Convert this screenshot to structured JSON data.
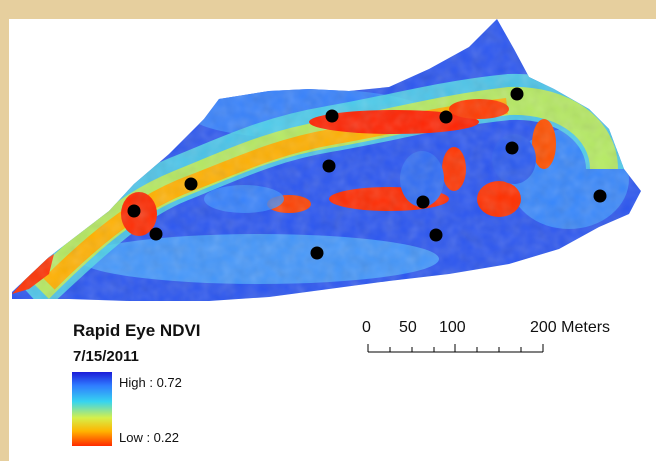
{
  "legend": {
    "title": "Rapid Eye NDVI",
    "date": "7/15/2011",
    "high_label": "High : 0.72",
    "low_label": "Low : 0.22",
    "high_value": 0.72,
    "low_value": 0.22,
    "colors": {
      "high": "#1b1bd8",
      "mid": "#36d4f0",
      "low": "#ff2a00"
    }
  },
  "scale_bar": {
    "ticks": [
      "0",
      "50",
      "100",
      "200 Meters"
    ]
  },
  "map": {
    "sample_point_count": 12,
    "point_color": "#000000",
    "background_color": "#e6cf9e"
  }
}
